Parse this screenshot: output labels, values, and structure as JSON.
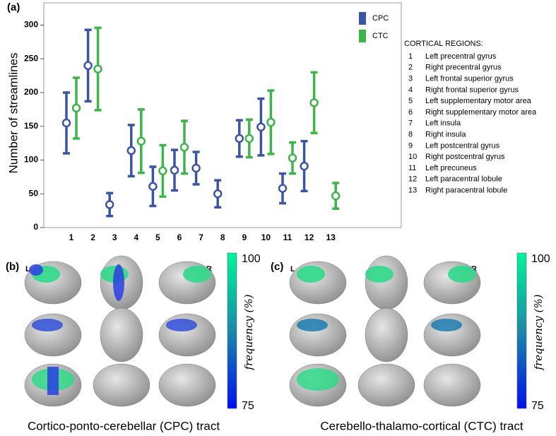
{
  "panel_a_label": "(a)",
  "chart_data": {
    "type": "errorbar",
    "y_label": "Number of streamlines",
    "categories": [
      "1",
      "2",
      "3",
      "4",
      "5",
      "6",
      "7",
      "8",
      "9",
      "10",
      "11",
      "12",
      "13"
    ],
    "series": [
      {
        "name": "CPC",
        "color": "#3b54a4",
        "values": [
          155,
          240,
          34,
          114,
          61,
          85,
          88,
          50,
          132,
          149,
          58,
          91,
          null
        ],
        "errors": [
          45,
          53,
          17,
          38,
          29,
          30,
          24,
          20,
          27,
          42,
          22,
          37,
          null
        ]
      },
      {
        "name": "CTC",
        "color": "#3db54a",
        "values": [
          177,
          235,
          null,
          128,
          84,
          119,
          null,
          null,
          132,
          156,
          103,
          185,
          47
        ],
        "errors": [
          45,
          61,
          null,
          47,
          38,
          39,
          null,
          null,
          28,
          47,
          23,
          45,
          19
        ]
      }
    ],
    "ylim": [
      0,
      333
    ],
    "yticks": [
      0,
      50,
      100,
      150,
      200,
      250,
      300
    ]
  },
  "regions_title": "CORTICAL REGIONS:",
  "regions": [
    {
      "number": "1",
      "name": "Left precentral gyrus"
    },
    {
      "number": "2",
      "name": "Right precentral gyrus"
    },
    {
      "number": "3",
      "name": "Left frontal superior gyrus"
    },
    {
      "number": "4",
      "name": "Right frontal superior gyrus"
    },
    {
      "number": "5",
      "name": "Left supplementary motor area"
    },
    {
      "number": "6",
      "name": "Right supplementary motor area"
    },
    {
      "number": "7",
      "name": "Left insula"
    },
    {
      "number": "8",
      "name": "Right insula"
    },
    {
      "number": "9",
      "name": "Left postcentral gyrus"
    },
    {
      "number": "10",
      "name": "Right postcentral gyrus"
    },
    {
      "number": "11",
      "name": "Left precuneus"
    },
    {
      "number": "12",
      "name": "Left paracentral lobule"
    },
    {
      "number": "13",
      "name": "Right paracentral lobule"
    }
  ],
  "panels": [
    {
      "label": "(b)",
      "left": "L",
      "right": "R",
      "caption": "Cortico-ponto-cerebellar (CPC) tract",
      "colorbar": {
        "max": 100,
        "min": 75,
        "label": "frequency (%)"
      }
    },
    {
      "label": "(c)",
      "left": "L",
      "right": "R",
      "caption": "Cerebello-thalamo-cortical (CTC) tract",
      "colorbar": {
        "max": 100,
        "min": 75,
        "label": "frequency (%)"
      }
    }
  ]
}
